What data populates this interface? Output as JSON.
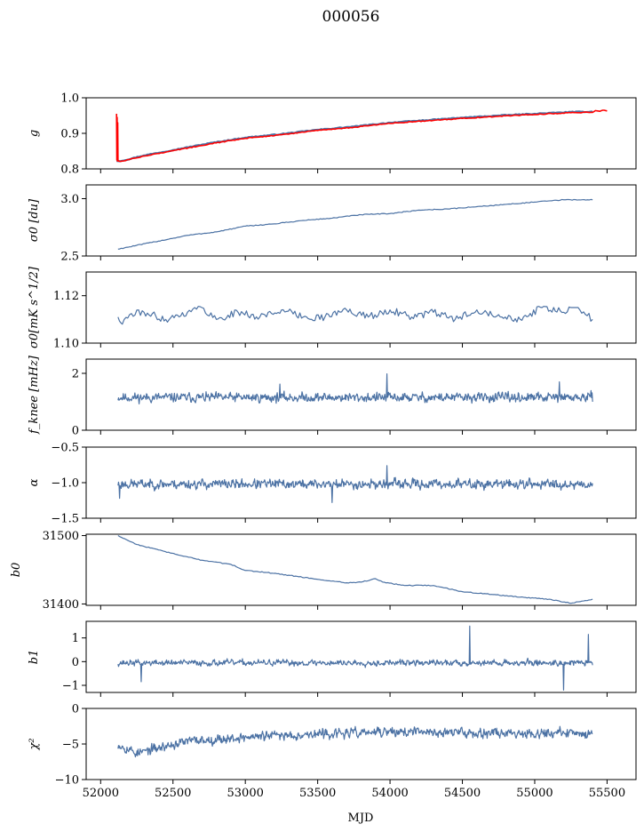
{
  "figure": {
    "title": "000056",
    "xlabel": "MJD"
  },
  "chart_data": [
    {
      "type": "line",
      "ylabel": "g",
      "ylim": [
        0.8,
        1.0
      ],
      "yticks": [
        0.8,
        0.9,
        1.0
      ],
      "ytick_labels": [
        "0.8",
        "0.9",
        "1.0"
      ],
      "xlim": [
        51900,
        55700
      ],
      "series": [
        {
          "color": "#4c72a4",
          "width": 2.2,
          "x": [
            52110,
            52150,
            52300,
            52500,
            52750,
            53000,
            53250,
            53500,
            53750,
            54000,
            54250,
            54500,
            54750,
            55000,
            55250,
            55400
          ],
          "y": [
            0.822,
            0.823,
            0.838,
            0.853,
            0.872,
            0.888,
            0.898,
            0.91,
            0.919,
            0.93,
            0.937,
            0.944,
            0.95,
            0.955,
            0.96,
            0.961
          ]
        },
        {
          "color": "#ff0000",
          "width": 1.6,
          "x": [
            52110,
            52112,
            52114,
            52116,
            52118,
            52120,
            52125,
            52135,
            52150,
            52300,
            52500,
            52750,
            53000,
            53250,
            53500,
            53750,
            54000,
            54250,
            54500,
            54750,
            55000,
            55250,
            55400,
            55420,
            55450,
            55480,
            55500
          ],
          "y": [
            0.955,
            0.825,
            0.945,
            0.822,
            0.93,
            0.824,
            0.822,
            0.821,
            0.822,
            0.836,
            0.851,
            0.87,
            0.886,
            0.896,
            0.908,
            0.917,
            0.928,
            0.935,
            0.942,
            0.948,
            0.953,
            0.958,
            0.959,
            0.964,
            0.962,
            0.965,
            0.963
          ]
        }
      ]
    },
    {
      "type": "line",
      "ylabel": "σ0 [du]",
      "ylim": [
        2.5,
        3.12
      ],
      "yticks": [
        2.5,
        3.0
      ],
      "ytick_labels": [
        "2.5",
        "3.0"
      ],
      "xlim": [
        51900,
        55700
      ],
      "series": [
        {
          "color": "#4c72a4",
          "width": 1.2,
          "x": [
            52120,
            52200,
            52400,
            52600,
            52800,
            53000,
            53200,
            53400,
            53600,
            53800,
            54000,
            54200,
            54400,
            54600,
            54800,
            55000,
            55200,
            55400
          ],
          "y": [
            2.56,
            2.58,
            2.63,
            2.68,
            2.71,
            2.76,
            2.78,
            2.81,
            2.83,
            2.86,
            2.87,
            2.9,
            2.91,
            2.93,
            2.95,
            2.97,
            2.99,
            2.99
          ]
        }
      ]
    },
    {
      "type": "line",
      "ylabel": "σ0[mK s^1/2]",
      "ylim": [
        1.1,
        1.13
      ],
      "yticks": [
        1.1,
        1.12
      ],
      "ytick_labels": [
        "1.10",
        "1.12"
      ],
      "xlim": [
        51900,
        55700
      ],
      "series": [
        {
          "color": "#4c72a4",
          "width": 1.2,
          "x": [
            52120,
            52150,
            52200,
            52300,
            52450,
            52600,
            52700,
            52800,
            52950,
            53100,
            53250,
            53400,
            53550,
            53700,
            53850,
            54000,
            54150,
            54300,
            54450,
            54600,
            54750,
            54900,
            55050,
            55200,
            55300,
            55400
          ],
          "y": [
            1.111,
            1.108,
            1.112,
            1.113,
            1.11,
            1.113,
            1.115,
            1.11,
            1.113,
            1.111,
            1.114,
            1.111,
            1.111,
            1.114,
            1.111,
            1.114,
            1.111,
            1.113,
            1.11,
            1.114,
            1.112,
            1.11,
            1.115,
            1.113,
            1.115,
            1.11
          ]
        }
      ]
    },
    {
      "type": "line",
      "ylabel": "f_knee [mHz]",
      "ylim": [
        0,
        2.5
      ],
      "yticks": [
        0,
        2
      ],
      "ytick_labels": [
        "0",
        "2"
      ],
      "xlim": [
        51900,
        55700
      ],
      "series": [
        {
          "color": "#4c72a4",
          "width": 1.2,
          "noisy": true,
          "mean": 1.15,
          "amp": 0.22,
          "seed": 11,
          "x_range": [
            52120,
            55400
          ],
          "spikes": [
            [
              53980,
              1.98
            ],
            [
              53240,
              1.62
            ],
            [
              55170,
              1.7
            ]
          ]
        }
      ]
    },
    {
      "type": "line",
      "ylabel": "α",
      "ylim": [
        -1.5,
        -0.5
      ],
      "yticks": [
        -1.5,
        -1.0,
        -0.5
      ],
      "ytick_labels": [
        "−1.5",
        "−1.0",
        "−0.5"
      ],
      "xlim": [
        51900,
        55700
      ],
      "series": [
        {
          "color": "#4c72a4",
          "width": 1.2,
          "noisy": true,
          "mean": -1.02,
          "amp": 0.09,
          "seed": 23,
          "x_range": [
            52120,
            55400
          ],
          "spikes": [
            [
              53980,
              -0.76
            ],
            [
              52130,
              -1.22
            ],
            [
              53600,
              -1.28
            ]
          ]
        }
      ]
    },
    {
      "type": "line",
      "ylabel": "b0",
      "ylim": [
        31398,
        31502
      ],
      "yticks": [
        31400,
        31500
      ],
      "ytick_labels": [
        "31400",
        "31500"
      ],
      "xlim": [
        51900,
        55700
      ],
      "series": [
        {
          "color": "#4c72a4",
          "width": 1.2,
          "x": [
            52120,
            52250,
            52400,
            52550,
            52700,
            52900,
            53000,
            53150,
            53300,
            53500,
            53700,
            53800,
            53900,
            53950,
            54100,
            54300,
            54500,
            54700,
            54900,
            55100,
            55250,
            55350,
            55400
          ],
          "y": [
            31500,
            31487,
            31479,
            31471,
            31464,
            31458,
            31449,
            31446,
            31442,
            31436,
            31431,
            31432,
            31437,
            31432,
            31427,
            31427,
            31418,
            31414,
            31410,
            31407,
            31401,
            31405,
            31407
          ]
        }
      ]
    },
    {
      "type": "line",
      "ylabel": "b1",
      "ylim": [
        -1.3,
        1.7
      ],
      "yticks": [
        -1,
        0,
        1
      ],
      "ytick_labels": [
        "−1",
        "0",
        "1"
      ],
      "xlim": [
        51900,
        55700
      ],
      "series": [
        {
          "color": "#4c72a4",
          "width": 1.2,
          "noisy": true,
          "mean": -0.05,
          "amp": 0.17,
          "seed": 37,
          "x_range": [
            52120,
            55400
          ],
          "spikes": [
            [
              54550,
              1.5
            ],
            [
              55200,
              -1.2
            ],
            [
              55370,
              1.15
            ],
            [
              52280,
              -0.85
            ]
          ]
        }
      ]
    },
    {
      "type": "line",
      "ylabel": "χ²",
      "ylim": [
        -10,
        0
      ],
      "yticks": [
        -10,
        -5,
        0
      ],
      "ytick_labels": [
        "−10",
        "−5",
        "0"
      ],
      "xlim": [
        51900,
        55700
      ],
      "xticks": [
        52000,
        52500,
        53000,
        53500,
        54000,
        54500,
        55000,
        55500
      ],
      "xtick_labels": [
        "52000",
        "52500",
        "53000",
        "53500",
        "54000",
        "54500",
        "55000",
        "55500"
      ],
      "series": [
        {
          "color": "#4c72a4",
          "width": 1.2,
          "noisy": true,
          "mean": -3.6,
          "amp": 0.9,
          "seed": 53,
          "x_range": [
            52120,
            55400
          ],
          "trend": [
            [
              52120,
              -5.0
            ],
            [
              52250,
              -6.3
            ],
            [
              52600,
              -4.6
            ],
            [
              53200,
              -3.8
            ],
            [
              54000,
              -3.3
            ],
            [
              55400,
              -3.5
            ]
          ]
        }
      ]
    }
  ]
}
